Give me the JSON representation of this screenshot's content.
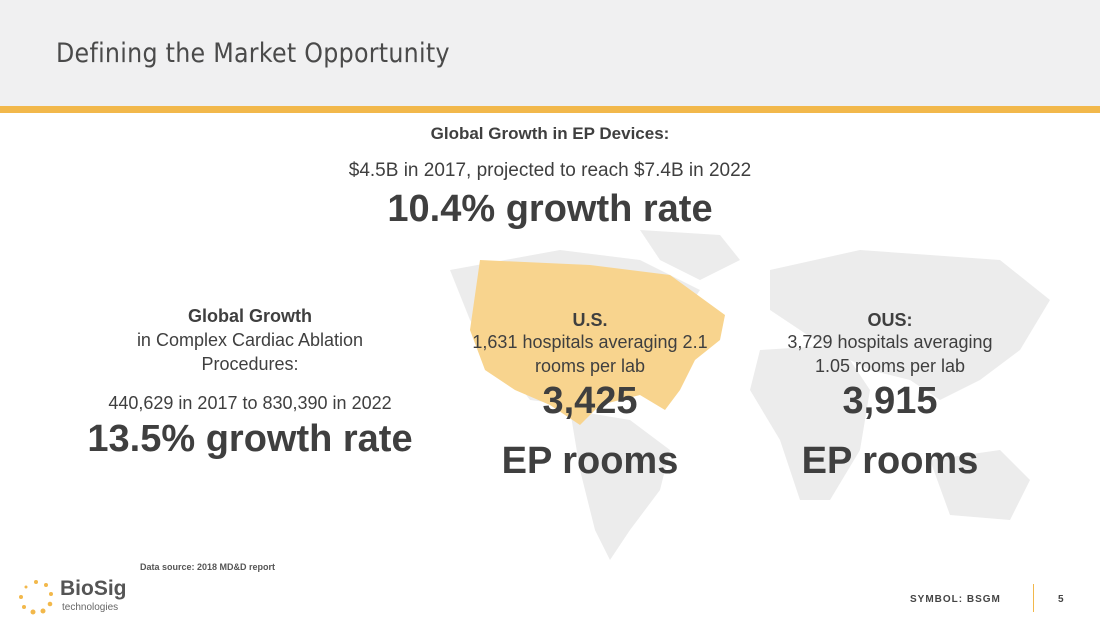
{
  "header": {
    "title": "Defining the Market Opportunity"
  },
  "global_ep": {
    "heading": "Global Growth in EP Devices:",
    "detail": "$4.5B in 2017, projected to reach $7.4B in 2022",
    "rate": "10.4% growth rate"
  },
  "ablation": {
    "heading": "Global Growth",
    "line1": "in Complex Cardiac Ablation",
    "line2": "Procedures:",
    "detail": "440,629 in 2017 to 830,390 in 2022",
    "rate": "13.5% growth rate"
  },
  "us": {
    "heading": "U.S.",
    "line1": "1,631 hospitals averaging 2.1",
    "line2": "rooms per lab",
    "count": "3,425",
    "unit": "EP rooms"
  },
  "ous": {
    "heading": "OUS:",
    "line1": "3,729 hospitals averaging",
    "line2": "1.05 rooms per lab",
    "count": "3,915",
    "unit": "EP rooms"
  },
  "footer": {
    "source": "Data source: 2018 MD&D report",
    "logo": "BioSig technologies",
    "symbol": "SYMBOL: BSGM",
    "page": "5"
  },
  "colors": {
    "accent": "#f2b84b",
    "us_map": "#f8d48e",
    "map": "#ececec"
  }
}
